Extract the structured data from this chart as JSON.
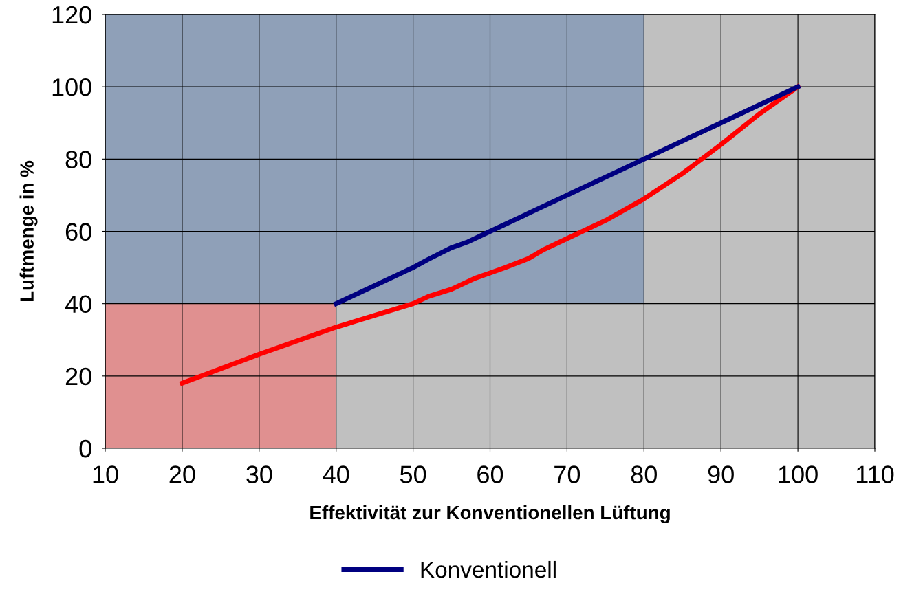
{
  "chart_data": {
    "type": "line",
    "xlabel": "Effektivität zur Konventionellen Lüftung",
    "ylabel": "Luftmenge in %",
    "xlim": [
      10,
      110
    ],
    "xticks": [
      10,
      20,
      30,
      40,
      50,
      60,
      70,
      80,
      90,
      100,
      110
    ],
    "ylim": [
      0,
      120
    ],
    "yticks": [
      0,
      20,
      40,
      60,
      80,
      100,
      120
    ],
    "grid": true,
    "legend": "bottom",
    "marker": "none",
    "line_style": "solid",
    "series": [
      {
        "type": "area",
        "color": "#8fa0b8",
        "x": [
          10,
          80
        ],
        "values": [
          120,
          120
        ]
      },
      {
        "type": "area",
        "color": "#c0c0c0",
        "x": [
          40,
          80
        ],
        "values": [
          40,
          40
        ]
      },
      {
        "type": "area",
        "color": "#e09090",
        "x": [
          10,
          40
        ],
        "values": [
          40,
          40
        ]
      },
      {
        "color": "#ff0000",
        "x": [
          20,
          30,
          40,
          50,
          52,
          55,
          58,
          60,
          62,
          65,
          67,
          70,
          75,
          80,
          85,
          90,
          95,
          100
        ],
        "values": [
          18,
          26,
          33.5,
          40,
          42,
          44,
          47,
          48.5,
          50,
          52.5,
          55,
          58,
          63,
          69,
          76,
          84,
          92.5,
          100
        ]
      },
      {
        "name": "Konventionell",
        "color": "#000080",
        "x": [
          40,
          50,
          52,
          55,
          57,
          60,
          65,
          70,
          80,
          90,
          100
        ],
        "values": [
          40,
          50,
          52.3,
          55.5,
          57,
          60,
          65,
          70,
          80,
          90,
          100
        ]
      }
    ]
  }
}
